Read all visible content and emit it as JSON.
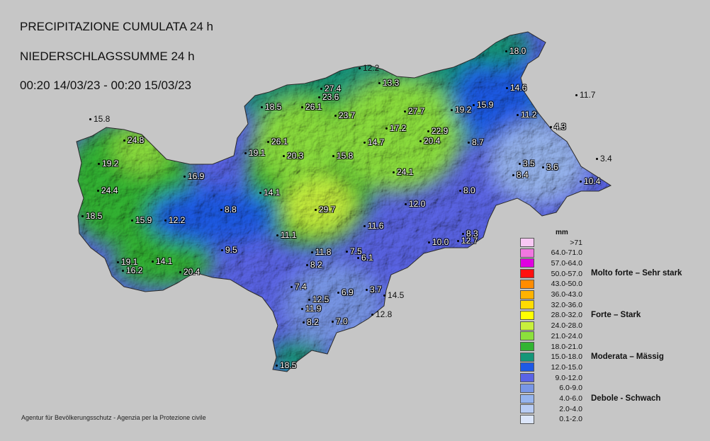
{
  "titles": {
    "line1": "PRECIPITAZIONE CUMULATA 24 h",
    "line2": "NIEDERSCHLAGSSUMME 24 h",
    "line3": "00:20 14/03/23 - 00:20 15/03/23"
  },
  "footer": "Agentur für Bevölkerungsschutz - Agenzia per la Protezione civile",
  "legend": {
    "unit": "mm",
    "classes": [
      {
        "label": ">71",
        "color": "#f9c8f4"
      },
      {
        "label": "64.0-71.0",
        "color": "#f077e0"
      },
      {
        "label": "57.0-64.0",
        "color": "#e000e0"
      },
      {
        "label": "50.0-57.0",
        "color": "#ff1010"
      },
      {
        "label": "43.0-50.0",
        "color": "#ff8c00"
      },
      {
        "label": "36.0-43.0",
        "color": "#ffb300"
      },
      {
        "label": "32.0-36.0",
        "color": "#ffdc00"
      },
      {
        "label": "28.0-32.0",
        "color": "#ffff00"
      },
      {
        "label": "24.0-28.0",
        "color": "#c8f03c"
      },
      {
        "label": "21.0-24.0",
        "color": "#8ce03c"
      },
      {
        "label": "18.0-21.0",
        "color": "#32b432"
      },
      {
        "label": "15.0-18.0",
        "color": "#149678"
      },
      {
        "label": "12.0-15.0",
        "color": "#1e5ae6"
      },
      {
        "label": "9.0-12.0",
        "color": "#5a64e6"
      },
      {
        "label": "6.0-9.0",
        "color": "#7896e6"
      },
      {
        "label": "4.0-6.0",
        "color": "#96b4ee"
      },
      {
        "label": "2.0-4.0",
        "color": "#b9cdf5"
      },
      {
        "label": "0.1-2.0",
        "color": "#dce6fa"
      }
    ],
    "categories": [
      "Molto forte – Sehr stark",
      "Forte – Stark",
      "Moderata – Mässig",
      "Debole - Schwach"
    ]
  },
  "stations": [
    {
      "v": "18.0"
    },
    {
      "v": "12.2"
    },
    {
      "v": "13.3"
    },
    {
      "v": "14.6"
    },
    {
      "v": "11.7"
    },
    {
      "v": "15.8"
    },
    {
      "v": "27.4"
    },
    {
      "v": "23.6"
    },
    {
      "v": "18.5"
    },
    {
      "v": "26.1"
    },
    {
      "v": "23.7"
    },
    {
      "v": "27.7"
    },
    {
      "v": "19.2"
    },
    {
      "v": "15.9"
    },
    {
      "v": "11.2"
    },
    {
      "v": "24.8"
    },
    {
      "v": "17.2"
    },
    {
      "v": "22.9"
    },
    {
      "v": "4.3"
    },
    {
      "v": "26.1"
    },
    {
      "v": "20.4"
    },
    {
      "v": "8.7"
    },
    {
      "v": "19.1"
    },
    {
      "v": "20.3"
    },
    {
      "v": "15.8"
    },
    {
      "v": "14.7"
    },
    {
      "v": "19.2"
    },
    {
      "v": "3.5"
    },
    {
      "v": "3.6"
    },
    {
      "v": "3.4"
    },
    {
      "v": "24.1"
    },
    {
      "v": "16.9"
    },
    {
      "v": "8.4"
    },
    {
      "v": "10.4"
    },
    {
      "v": "24.4"
    },
    {
      "v": "14.1"
    },
    {
      "v": "8.0"
    },
    {
      "v": "12.0"
    },
    {
      "v": "29.7"
    },
    {
      "v": "8.8"
    },
    {
      "v": "18.5"
    },
    {
      "v": "15.9"
    },
    {
      "v": "12.2"
    },
    {
      "v": "11.6"
    },
    {
      "v": "11.1"
    },
    {
      "v": "8.3"
    },
    {
      "v": "10.0"
    },
    {
      "v": "12.7"
    },
    {
      "v": "9.5"
    },
    {
      "v": "11.8"
    },
    {
      "v": "7.5"
    },
    {
      "v": "6.1"
    },
    {
      "v": "19.1"
    },
    {
      "v": "14.1"
    },
    {
      "v": "8.2"
    },
    {
      "v": "16.2"
    },
    {
      "v": "20.4"
    },
    {
      "v": "7.4"
    },
    {
      "v": "3.7"
    },
    {
      "v": "14.5"
    },
    {
      "v": "12.5"
    },
    {
      "v": "6.9"
    },
    {
      "v": "11.9"
    },
    {
      "v": "12.8"
    },
    {
      "v": "8.2"
    },
    {
      "v": "7.0"
    },
    {
      "v": "18.5"
    }
  ]
}
